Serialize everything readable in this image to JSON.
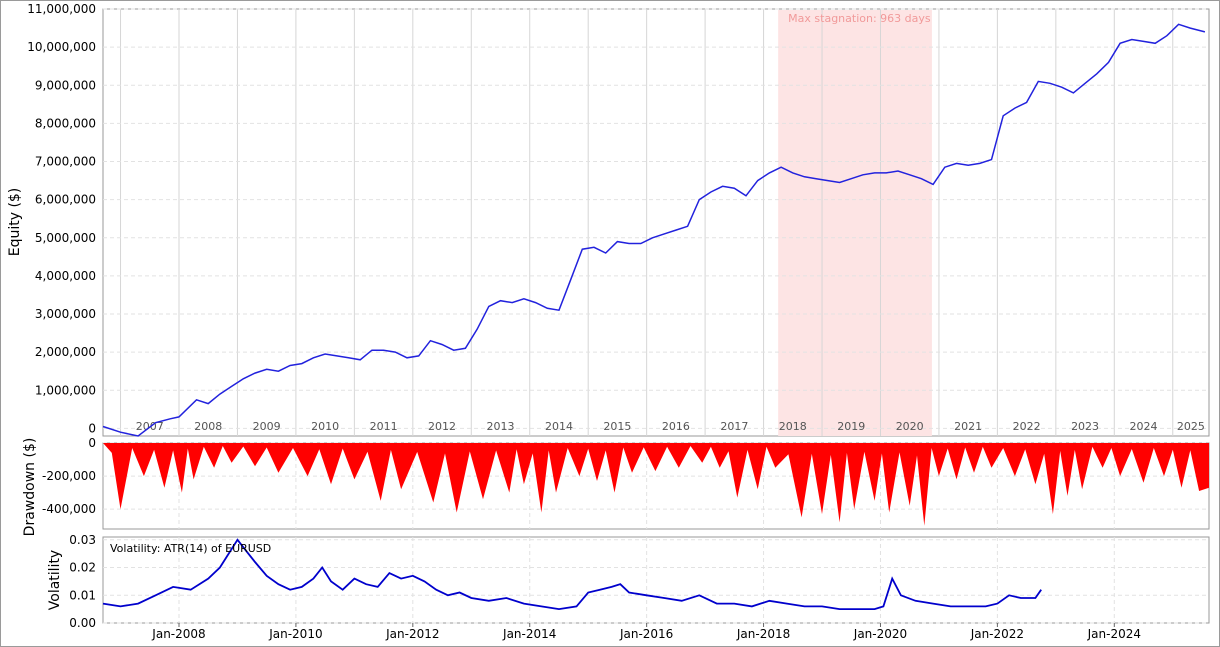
{
  "colors": {
    "equity_line": "#2222dd",
    "drawdown_fill": "#ff0000",
    "volatility_line": "#0000cc",
    "stagnation_band": "#fde4e4",
    "stagnation_text": "#f19a9a",
    "grid": "#d6d6d6"
  },
  "chart_data": [
    {
      "type": "line",
      "ylabel": "Equity ($)",
      "ylim": [
        -200000,
        11000000
      ],
      "yticks": [
        {
          "v": 0,
          "label": "0"
        },
        {
          "v": 1000000,
          "label": "1,000,000"
        },
        {
          "v": 2000000,
          "label": "2,000,000"
        },
        {
          "v": 3000000,
          "label": "3,000,000"
        },
        {
          "v": 4000000,
          "label": "4,000,000"
        },
        {
          "v": 5000000,
          "label": "5,000,000"
        },
        {
          "v": 6000000,
          "label": "6,000,000"
        },
        {
          "v": 7000000,
          "label": "7,000,000"
        },
        {
          "v": 8000000,
          "label": "8,000,000"
        },
        {
          "v": 9000000,
          "label": "9,000,000"
        },
        {
          "v": 10000000,
          "label": "10,000,000"
        },
        {
          "v": 11000000,
          "label": "11,000,000"
        }
      ],
      "year_labels": [
        "2007",
        "2008",
        "2009",
        "2010",
        "2011",
        "2012",
        "2013",
        "2014",
        "2015",
        "2016",
        "2017",
        "2018",
        "2019",
        "2020",
        "2021",
        "2022",
        "2023",
        "2024",
        "2025"
      ],
      "stagnation": {
        "label": "Max stagnation: 963 days",
        "start": 2018.25,
        "end": 2020.88
      },
      "x": [
        2006.7,
        2007.0,
        2007.3,
        2007.6,
        2007.85,
        2008.0,
        2008.3,
        2008.5,
        2008.7,
        2008.9,
        2009.1,
        2009.3,
        2009.5,
        2009.7,
        2009.9,
        2010.1,
        2010.3,
        2010.5,
        2010.7,
        2010.9,
        2011.1,
        2011.3,
        2011.5,
        2011.7,
        2011.9,
        2012.1,
        2012.3,
        2012.5,
        2012.7,
        2012.9,
        2013.1,
        2013.3,
        2013.5,
        2013.7,
        2013.9,
        2014.1,
        2014.3,
        2014.5,
        2014.7,
        2014.9,
        2015.1,
        2015.3,
        2015.5,
        2015.7,
        2015.9,
        2016.1,
        2016.3,
        2016.5,
        2016.7,
        2016.9,
        2017.1,
        2017.3,
        2017.5,
        2017.7,
        2017.9,
        2018.1,
        2018.3,
        2018.5,
        2018.7,
        2018.9,
        2019.1,
        2019.3,
        2019.5,
        2019.7,
        2019.9,
        2020.1,
        2020.3,
        2020.5,
        2020.7,
        2020.9,
        2021.1,
        2021.3,
        2021.5,
        2021.7,
        2021.9,
        2022.1,
        2022.3,
        2022.5,
        2022.7,
        2022.9,
        2023.1,
        2023.3,
        2023.5,
        2023.7,
        2023.9,
        2024.1,
        2024.3,
        2024.5,
        2024.7,
        2024.9,
        2025.1,
        2025.3,
        2025.55
      ],
      "series": [
        {
          "values": [
            50000,
            -100000,
            -200000,
            150000,
            250000,
            300000,
            750000,
            650000,
            900000,
            1100000,
            1300000,
            1450000,
            1550000,
            1500000,
            1650000,
            1700000,
            1850000,
            1950000,
            1900000,
            1850000,
            1800000,
            2050000,
            2050000,
            2000000,
            1850000,
            1900000,
            2300000,
            2200000,
            2050000,
            2100000,
            2600000,
            3200000,
            3350000,
            3300000,
            3400000,
            3300000,
            3150000,
            3100000,
            3900000,
            4700000,
            4750000,
            4600000,
            4900000,
            4850000,
            4850000,
            5000000,
            5100000,
            5200000,
            5300000,
            6000000,
            6200000,
            6350000,
            6300000,
            6100000,
            6500000,
            6700000,
            6850000,
            6700000,
            6600000,
            6550000,
            6500000,
            6450000,
            6550000,
            6650000,
            6700000,
            6700000,
            6750000,
            6650000,
            6550000,
            6400000,
            6850000,
            6950000,
            6900000,
            6950000,
            7050000,
            8200000,
            8400000,
            8550000,
            9100000,
            9050000,
            8950000,
            8800000,
            9050000,
            9300000,
            9600000,
            10100000,
            10200000,
            10150000,
            10100000,
            10300000,
            10600000,
            10500000,
            10400000
          ]
        }
      ]
    },
    {
      "type": "area",
      "ylabel": "Drawdown ($)",
      "ylim": [
        -520000,
        0
      ],
      "yticks": [
        {
          "v": 0,
          "label": "0"
        },
        {
          "v": -200000,
          "label": "-200,000"
        },
        {
          "v": -400000,
          "label": "-400,000"
        }
      ],
      "troughs": [
        [
          2007.0,
          -400000
        ],
        [
          2007.4,
          -200000
        ],
        [
          2007.75,
          -270000
        ],
        [
          2008.05,
          -300000
        ],
        [
          2008.25,
          -220000
        ],
        [
          2008.6,
          -150000
        ],
        [
          2008.9,
          -120000
        ],
        [
          2009.3,
          -140000
        ],
        [
          2009.7,
          -180000
        ],
        [
          2010.2,
          -200000
        ],
        [
          2010.6,
          -250000
        ],
        [
          2011.0,
          -220000
        ],
        [
          2011.45,
          -350000
        ],
        [
          2011.8,
          -280000
        ],
        [
          2012.35,
          -360000
        ],
        [
          2012.75,
          -420000
        ],
        [
          2013.2,
          -340000
        ],
        [
          2013.65,
          -300000
        ],
        [
          2013.9,
          -250000
        ],
        [
          2014.2,
          -420000
        ],
        [
          2014.45,
          -300000
        ],
        [
          2014.85,
          -200000
        ],
        [
          2015.15,
          -230000
        ],
        [
          2015.45,
          -300000
        ],
        [
          2015.75,
          -180000
        ],
        [
          2016.15,
          -170000
        ],
        [
          2016.55,
          -150000
        ],
        [
          2016.95,
          -120000
        ],
        [
          2017.25,
          -150000
        ],
        [
          2017.55,
          -330000
        ],
        [
          2017.9,
          -280000
        ],
        [
          2018.2,
          -150000
        ],
        [
          2018.65,
          -450000
        ],
        [
          2019.0,
          -430000
        ],
        [
          2019.3,
          -480000
        ],
        [
          2019.55,
          -400000
        ],
        [
          2019.9,
          -350000
        ],
        [
          2020.15,
          -420000
        ],
        [
          2020.5,
          -380000
        ],
        [
          2020.75,
          -500000
        ],
        [
          2021.0,
          -200000
        ],
        [
          2021.3,
          -220000
        ],
        [
          2021.6,
          -180000
        ],
        [
          2021.9,
          -150000
        ],
        [
          2022.3,
          -200000
        ],
        [
          2022.65,
          -250000
        ],
        [
          2022.95,
          -430000
        ],
        [
          2023.2,
          -320000
        ],
        [
          2023.45,
          -280000
        ],
        [
          2023.8,
          -150000
        ],
        [
          2024.1,
          -200000
        ],
        [
          2024.5,
          -240000
        ],
        [
          2024.85,
          -200000
        ],
        [
          2025.15,
          -270000
        ],
        [
          2025.45,
          -290000
        ]
      ]
    },
    {
      "type": "line",
      "ylabel": "Volatility",
      "annotation": "Volatility: ATR(14) of EURUSD",
      "ylim": [
        0,
        0.031
      ],
      "yticks": [
        {
          "v": 0.0,
          "label": "0.00"
        },
        {
          "v": 0.01,
          "label": "0.01"
        },
        {
          "v": 0.02,
          "label": "0.02"
        },
        {
          "v": 0.03,
          "label": "0.03"
        }
      ],
      "xtick_labels": [
        {
          "v": 2008.0,
          "label": "Jan-2008"
        },
        {
          "v": 2010.0,
          "label": "Jan-2010"
        },
        {
          "v": 2012.0,
          "label": "Jan-2012"
        },
        {
          "v": 2014.0,
          "label": "Jan-2014"
        },
        {
          "v": 2016.0,
          "label": "Jan-2016"
        },
        {
          "v": 2018.0,
          "label": "Jan-2018"
        },
        {
          "v": 2020.0,
          "label": "Jan-2020"
        },
        {
          "v": 2022.0,
          "label": "Jan-2022"
        },
        {
          "v": 2024.0,
          "label": "Jan-2024"
        }
      ],
      "x": [
        2006.7,
        2007.0,
        2007.3,
        2007.6,
        2007.9,
        2008.2,
        2008.5,
        2008.7,
        2008.85,
        2009.0,
        2009.15,
        2009.3,
        2009.5,
        2009.7,
        2009.9,
        2010.1,
        2010.3,
        2010.45,
        2010.6,
        2010.8,
        2011.0,
        2011.2,
        2011.4,
        2011.6,
        2011.8,
        2012.0,
        2012.2,
        2012.4,
        2012.6,
        2012.8,
        2013.0,
        2013.3,
        2013.6,
        2013.9,
        2014.2,
        2014.5,
        2014.8,
        2015.0,
        2015.2,
        2015.4,
        2015.55,
        2015.7,
        2016.0,
        2016.3,
        2016.6,
        2016.9,
        2017.2,
        2017.5,
        2017.8,
        2018.1,
        2018.4,
        2018.7,
        2019.0,
        2019.3,
        2019.6,
        2019.9,
        2020.05,
        2020.2,
        2020.35,
        2020.6,
        2020.9,
        2021.2,
        2021.5,
        2021.8,
        2022.0,
        2022.2,
        2022.4,
        2022.65,
        2022.75
      ],
      "series": [
        {
          "values": [
            0.007,
            0.006,
            0.007,
            0.01,
            0.013,
            0.012,
            0.016,
            0.02,
            0.025,
            0.03,
            0.026,
            0.022,
            0.017,
            0.014,
            0.012,
            0.013,
            0.016,
            0.02,
            0.015,
            0.012,
            0.016,
            0.014,
            0.013,
            0.018,
            0.016,
            0.017,
            0.015,
            0.012,
            0.01,
            0.011,
            0.009,
            0.008,
            0.009,
            0.007,
            0.006,
            0.005,
            0.006,
            0.011,
            0.012,
            0.013,
            0.014,
            0.011,
            0.01,
            0.009,
            0.008,
            0.01,
            0.007,
            0.007,
            0.006,
            0.008,
            0.007,
            0.006,
            0.006,
            0.005,
            0.005,
            0.005,
            0.006,
            0.016,
            0.01,
            0.008,
            0.007,
            0.006,
            0.006,
            0.006,
            0.007,
            0.01,
            0.009,
            0.009,
            0.012
          ]
        }
      ]
    }
  ]
}
